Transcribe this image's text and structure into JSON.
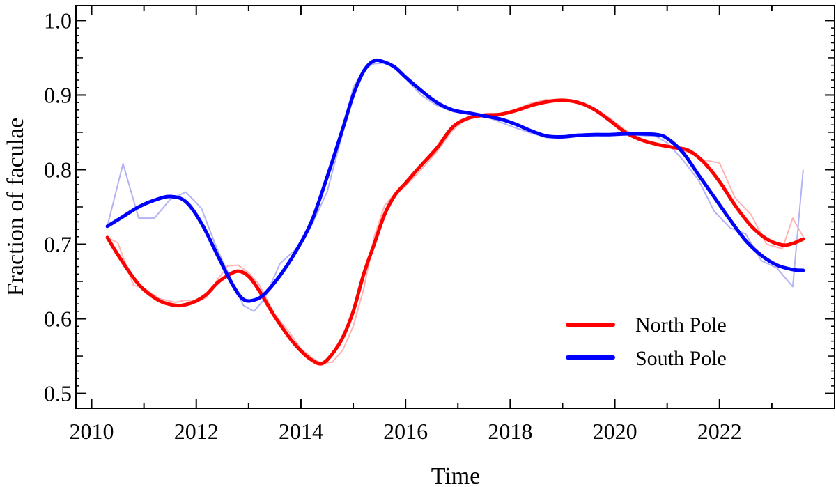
{
  "chart_data": {
    "type": "line",
    "xlabel": "Time",
    "ylabel": "Fraction of faculae",
    "xlim": [
      2009.7,
      2024.2
    ],
    "ylim": [
      0.48,
      1.02
    ],
    "x_ticks": [
      2010,
      2012,
      2014,
      2016,
      2018,
      2020,
      2022
    ],
    "y_ticks": [
      0.5,
      0.6,
      0.7,
      0.8,
      0.9,
      1.0
    ],
    "x_tick_labels": [
      "2010",
      "2012",
      "2014",
      "2016",
      "2018",
      "2020",
      "2022"
    ],
    "y_tick_labels": [
      "0.5",
      "0.6",
      "0.7",
      "0.8",
      "0.9",
      "1.0"
    ],
    "grid": false,
    "legend_position": "bottom-right",
    "series": [
      {
        "name": "North Pole",
        "color": "#ff0000",
        "raw_color": "#ffb3b3",
        "x": [
          2010.3,
          2010.5,
          2010.8,
          2011.0,
          2011.3,
          2011.6,
          2011.8,
          2012.0,
          2012.2,
          2012.4,
          2012.6,
          2012.8,
          2013.0,
          2013.2,
          2013.5,
          2013.8,
          2014.0,
          2014.2,
          2014.4,
          2014.6,
          2014.8,
          2015.0,
          2015.2,
          2015.4,
          2015.6,
          2015.8,
          2016.0,
          2016.3,
          2016.6,
          2016.9,
          2017.2,
          2017.5,
          2017.8,
          2018.1,
          2018.4,
          2018.7,
          2019.0,
          2019.3,
          2019.6,
          2019.9,
          2020.2,
          2020.5,
          2020.8,
          2021.1,
          2021.4,
          2021.7,
          2022.0,
          2022.3,
          2022.6,
          2022.9,
          2023.2,
          2023.4,
          2023.6
        ],
        "y": [
          0.709,
          0.686,
          0.655,
          0.639,
          0.624,
          0.618,
          0.619,
          0.624,
          0.633,
          0.648,
          0.658,
          0.664,
          0.657,
          0.638,
          0.603,
          0.573,
          0.557,
          0.545,
          0.54,
          0.553,
          0.575,
          0.61,
          0.66,
          0.7,
          0.74,
          0.766,
          0.782,
          0.806,
          0.829,
          0.857,
          0.869,
          0.873,
          0.874,
          0.879,
          0.886,
          0.891,
          0.893,
          0.89,
          0.881,
          0.866,
          0.85,
          0.84,
          0.834,
          0.83,
          0.826,
          0.81,
          0.784,
          0.752,
          0.725,
          0.707,
          0.699,
          0.701,
          0.707
        ],
        "raw_y": [
          0.709,
          0.702,
          0.645,
          0.641,
          0.627,
          0.622,
          0.625,
          0.622,
          0.629,
          0.652,
          0.671,
          0.672,
          0.662,
          0.646,
          0.606,
          0.58,
          0.56,
          0.548,
          0.54,
          0.542,
          0.558,
          0.59,
          0.64,
          0.71,
          0.752,
          0.768,
          0.778,
          0.8,
          0.824,
          0.853,
          0.87,
          0.874,
          0.873,
          0.881,
          0.889,
          0.894,
          0.893,
          0.889,
          0.883,
          0.869,
          0.853,
          0.842,
          0.832,
          0.829,
          0.823,
          0.813,
          0.809,
          0.762,
          0.74,
          0.7,
          0.694,
          0.735,
          0.71
        ]
      },
      {
        "name": "South Pole",
        "color": "#0000ff",
        "raw_color": "#b3b3f5",
        "x": [
          2010.3,
          2010.6,
          2010.9,
          2011.2,
          2011.5,
          2011.8,
          2012.1,
          2012.4,
          2012.7,
          2012.9,
          2013.1,
          2013.3,
          2013.6,
          2013.9,
          2014.2,
          2014.5,
          2014.8,
          2015.0,
          2015.2,
          2015.4,
          2015.6,
          2015.8,
          2016.0,
          2016.3,
          2016.6,
          2016.9,
          2017.2,
          2017.5,
          2017.8,
          2018.1,
          2018.4,
          2018.7,
          2019.0,
          2019.3,
          2019.6,
          2019.9,
          2020.2,
          2020.5,
          2020.8,
          2021.0,
          2021.3,
          2021.6,
          2021.9,
          2022.2,
          2022.5,
          2022.8,
          2023.1,
          2023.4,
          2023.6
        ],
        "y": [
          0.724,
          0.737,
          0.75,
          0.759,
          0.764,
          0.757,
          0.728,
          0.686,
          0.645,
          0.626,
          0.625,
          0.633,
          0.658,
          0.69,
          0.73,
          0.79,
          0.855,
          0.9,
          0.932,
          0.946,
          0.944,
          0.937,
          0.924,
          0.906,
          0.89,
          0.88,
          0.876,
          0.872,
          0.868,
          0.861,
          0.852,
          0.845,
          0.844,
          0.846,
          0.847,
          0.847,
          0.848,
          0.848,
          0.847,
          0.842,
          0.823,
          0.793,
          0.763,
          0.733,
          0.705,
          0.685,
          0.672,
          0.666,
          0.665
        ],
        "raw_y": [
          0.724,
          0.808,
          0.735,
          0.735,
          0.76,
          0.77,
          0.748,
          0.693,
          0.648,
          0.618,
          0.61,
          0.626,
          0.674,
          0.693,
          0.725,
          0.77,
          0.85,
          0.91,
          0.935,
          0.942,
          0.943,
          0.939,
          0.922,
          0.9,
          0.886,
          0.878,
          0.874,
          0.872,
          0.864,
          0.856,
          0.849,
          0.843,
          0.845,
          0.848,
          0.846,
          0.846,
          0.849,
          0.846,
          0.844,
          0.836,
          0.813,
          0.786,
          0.744,
          0.722,
          0.714,
          0.678,
          0.668,
          0.643,
          0.8
        ]
      }
    ]
  }
}
